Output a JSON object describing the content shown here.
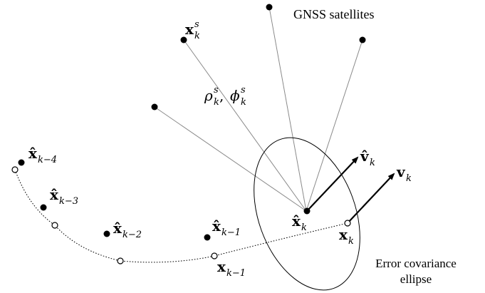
{
  "labels": {
    "gnss": "GNSS satellites",
    "error_line1": "Error covariance",
    "error_line2": "ellipse"
  },
  "math": {
    "sat_sym": "x",
    "sat_sup": "s",
    "sat_sub": "k",
    "rho": "ρ",
    "phi": "ϕ",
    "rho_sup": "s",
    "rho_sub": "k",
    "comma": ", ",
    "vhat_sym": "v̂",
    "vhat_sub": "k",
    "v_sym": "v",
    "v_sub": "k",
    "xhat_k_sym": "x̂",
    "xhat_k_sub": "k",
    "x_k_sym": "x",
    "x_k_sub": "k",
    "xhat_km1_sym": "x̂",
    "xhat_km1_sub": "k−1",
    "xhat_km2_sym": "x̂",
    "xhat_km2_sub": "k−2",
    "xhat_km3_sym": "x̂",
    "xhat_km3_sub": "k−3",
    "xhat_km4_sym": "x̂",
    "xhat_km4_sub": "k−4",
    "x_km1_sym": "x",
    "x_km1_sub": "k−1"
  }
}
